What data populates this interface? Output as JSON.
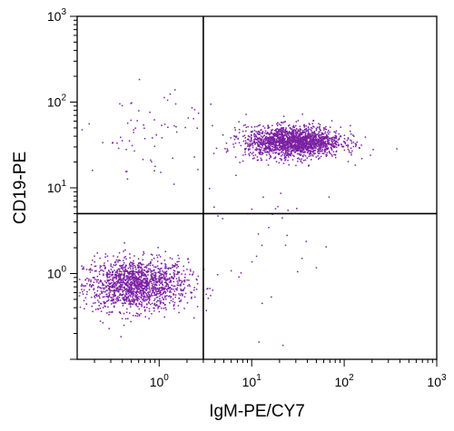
{
  "chart_data": {
    "type": "scatter",
    "title": "",
    "xlabel": "IgM-PE/CY7",
    "ylabel": "CD19-PE",
    "xscale": "log",
    "yscale": "log",
    "xlim": [
      0.13,
      1000
    ],
    "ylim": [
      0.1,
      1000
    ],
    "x_tick_labels": [
      {
        "base": "10",
        "exp": "0",
        "value": 1
      },
      {
        "base": "10",
        "exp": "1",
        "value": 10
      },
      {
        "base": "10",
        "exp": "2",
        "value": 100
      },
      {
        "base": "10",
        "exp": "3",
        "value": 1000
      }
    ],
    "y_tick_labels": [
      {
        "base": "10",
        "exp": "0",
        "value": 1
      },
      {
        "base": "10",
        "exp": "1",
        "value": 10
      },
      {
        "base": "10",
        "exp": "2",
        "value": 100
      },
      {
        "base": "10",
        "exp": "3",
        "value": 1000
      }
    ],
    "quadrant_gate": {
      "x": 3,
      "y": 5
    },
    "point_color": "#7b1fa2",
    "populations": [
      {
        "center_x": 0.55,
        "center_y": 0.75,
        "spread_log_x": 0.28,
        "spread_log_y": 0.15,
        "count": 1600
      },
      {
        "center_x": 28,
        "center_y": 35,
        "spread_log_x": 0.26,
        "spread_log_y": 0.09,
        "count": 1900
      },
      {
        "center_x": 0.9,
        "center_y": 45,
        "spread_log_x": 0.35,
        "spread_log_y": 0.25,
        "count": 70
      },
      {
        "center_x": 15,
        "center_y": 2,
        "spread_log_x": 0.3,
        "spread_log_y": 0.5,
        "count": 40
      }
    ],
    "grid": false,
    "legend": "none"
  }
}
